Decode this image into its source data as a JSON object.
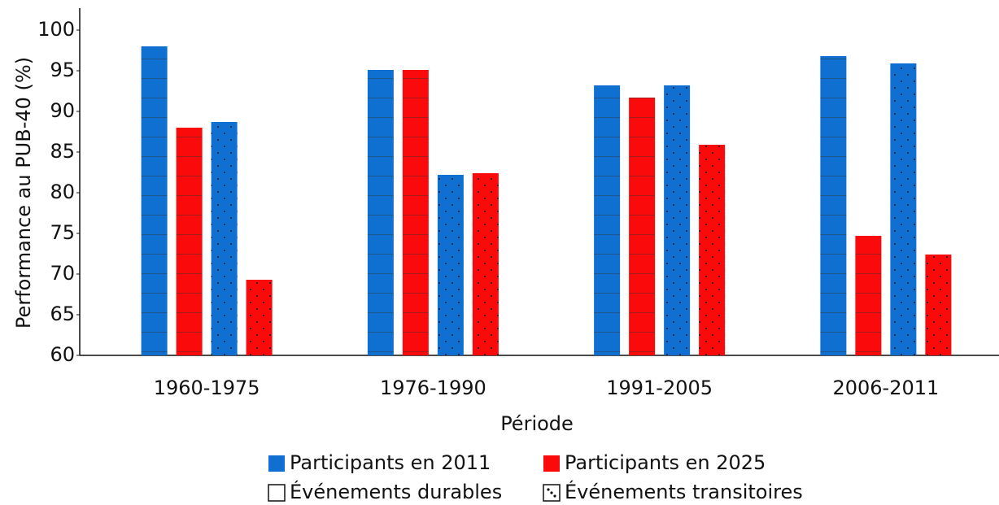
{
  "chart_data": {
    "type": "bar",
    "xlabel": "Période",
    "ylabel": "Performance au PUB-40 (%)",
    "categories": [
      "1960-1975",
      "1976-1990",
      "1991-2005",
      "2006-2011"
    ],
    "series": [
      {
        "color": "#0f70d2",
        "pattern": "lines",
        "values": [
          98.0,
          95.1,
          93.2,
          96.8
        ]
      },
      {
        "color": "#fa0a0a",
        "pattern": "lines",
        "values": [
          88.0,
          95.1,
          91.7,
          74.7
        ]
      },
      {
        "color": "#0f70d2",
        "pattern": "dots",
        "values": [
          88.7,
          82.2,
          93.2,
          95.9
        ]
      },
      {
        "color": "#fa0a0a",
        "pattern": "dots",
        "values": [
          69.3,
          82.4,
          85.9,
          72.4
        ]
      }
    ],
    "legend": {
      "colors": [
        {
          "name": "Participants en 2011",
          "color": "#0f70d2"
        },
        {
          "name": "Participants en 2025",
          "color": "#fa0a0a"
        }
      ],
      "patterns": [
        {
          "name": "Événements durables",
          "pattern": "lines"
        },
        {
          "name": "Événements transitoires",
          "pattern": "dots"
        }
      ]
    },
    "ylim": [
      60,
      102.7
    ],
    "yticks": [
      60,
      65,
      70,
      75,
      80,
      85,
      90,
      95,
      100
    ],
    "grid": false
  }
}
